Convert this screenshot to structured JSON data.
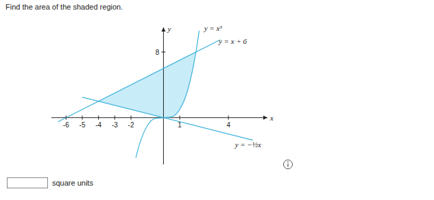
{
  "question": "Find the area of the shaded region.",
  "answer_unit": "square units",
  "chart_data": {
    "type": "line",
    "x_label": "x",
    "y_label": "y",
    "xlim": [
      -6.9,
      6.4
    ],
    "ylim": [
      -5.7,
      11
    ],
    "xticks": [
      -6,
      -5,
      -4,
      -3,
      -2,
      1,
      4
    ],
    "yticks": [
      8
    ],
    "series": [
      {
        "name": "y = x³",
        "color": "#3fb4dc",
        "x": [
          -1.7,
          -1.5,
          -1,
          -0.5,
          0,
          0.5,
          1,
          1.5,
          2,
          2.2
        ],
        "values": [
          -4.9,
          -3.4,
          -1,
          -0.1,
          0,
          0.1,
          1,
          3.4,
          8,
          10.6
        ]
      },
      {
        "name": "y = x + 6",
        "color": "#3fb4dc",
        "x": [
          -6.5,
          3.5
        ],
        "values": [
          -0.5,
          9.5
        ]
      },
      {
        "name": "y = −½x",
        "color": "#3fb4dc",
        "x": [
          -5,
          5.5
        ],
        "values": [
          2.5,
          -2.75
        ]
      }
    ],
    "shaded_region": {
      "color": "#c9ecf9",
      "x": [
        -4,
        -3,
        -2,
        -1,
        0,
        0.5,
        1,
        1.5,
        2
      ],
      "lower": [
        2,
        1.5,
        1,
        0.5,
        0,
        0.1,
        1,
        3.4,
        8
      ],
      "upper": [
        2,
        3,
        4,
        5,
        6,
        6.5,
        7,
        7.5,
        8
      ]
    }
  }
}
